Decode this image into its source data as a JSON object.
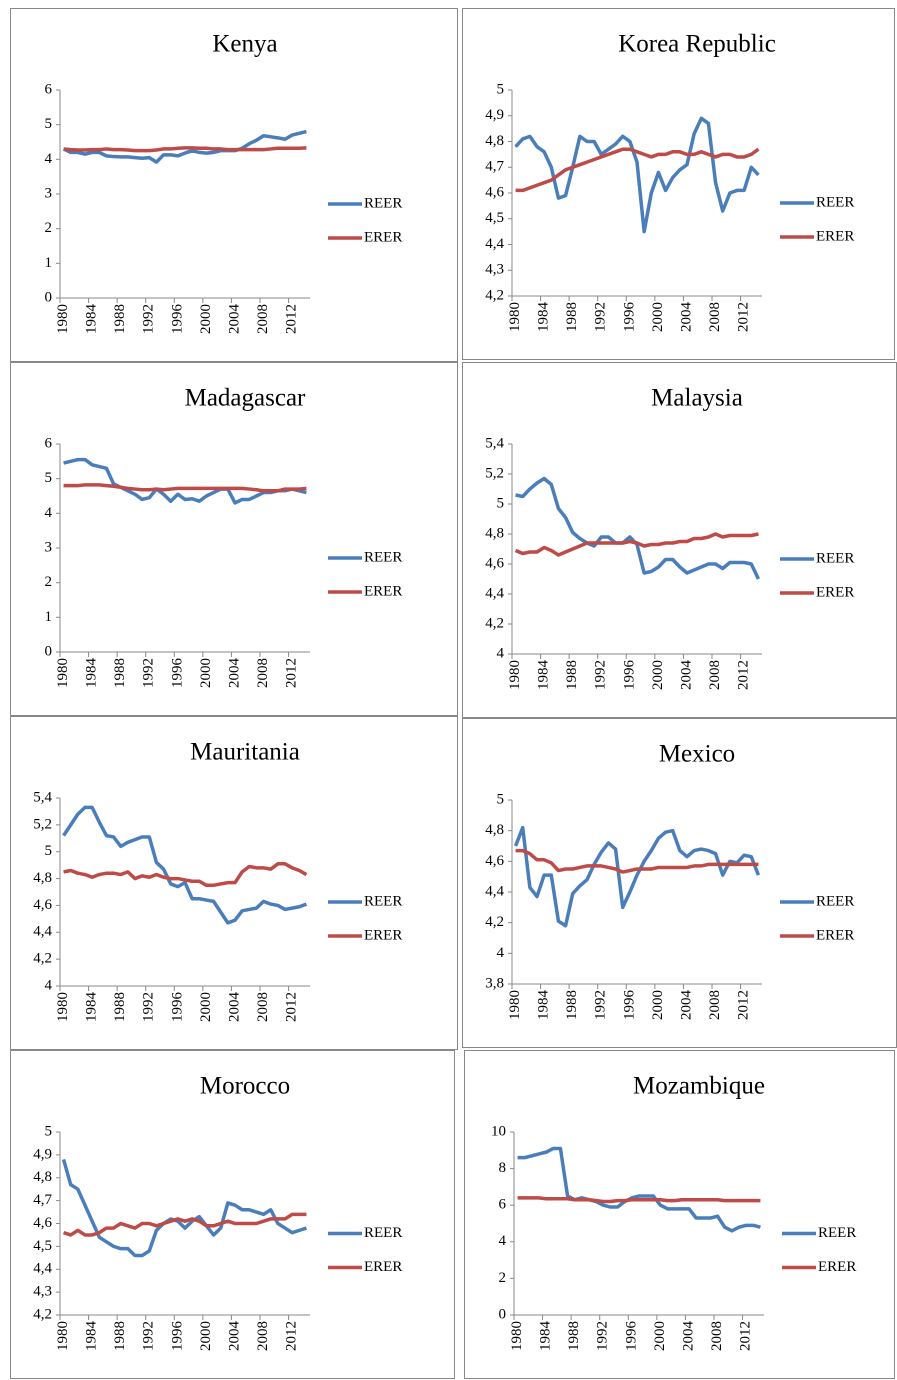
{
  "chart_data": [
    {
      "type": "line",
      "title": "Kenya",
      "categories": [
        "1980",
        null,
        null,
        null,
        "1984",
        null,
        null,
        null,
        "1988",
        null,
        null,
        null,
        "1992",
        null,
        null,
        null,
        "1996",
        null,
        null,
        null,
        "2000",
        null,
        null,
        null,
        "2004",
        null,
        null,
        null,
        "2008",
        null,
        null,
        null,
        "2012",
        null,
        null
      ],
      "ylim": [
        0,
        6
      ],
      "yticks": [
        0,
        1,
        2,
        3,
        4,
        5,
        6
      ],
      "series": [
        {
          "name": "REER",
          "color": "#4a7ebb",
          "values": [
            4.3,
            4.2,
            4.2,
            4.15,
            4.2,
            4.2,
            4.1,
            4.08,
            4.07,
            4.07,
            4.05,
            4.03,
            4.05,
            3.92,
            4.13,
            4.13,
            4.1,
            4.18,
            4.25,
            4.2,
            4.18,
            4.2,
            4.25,
            4.25,
            4.25,
            4.32,
            4.45,
            4.55,
            4.68,
            4.65,
            4.62,
            4.58,
            4.7,
            4.75,
            4.8
          ]
        },
        {
          "name": "ERER",
          "color": "#be4b48",
          "values": [
            4.3,
            4.28,
            4.27,
            4.27,
            4.28,
            4.28,
            4.3,
            4.28,
            4.28,
            4.27,
            4.25,
            4.25,
            4.25,
            4.27,
            4.3,
            4.3,
            4.32,
            4.33,
            4.33,
            4.32,
            4.32,
            4.3,
            4.3,
            4.28,
            4.28,
            4.28,
            4.28,
            4.28,
            4.28,
            4.3,
            4.32,
            4.32,
            4.32,
            4.32,
            4.33
          ]
        }
      ]
    },
    {
      "type": "line",
      "title": "Korea Republic",
      "categories": [
        "1980",
        null,
        null,
        null,
        "1984",
        null,
        null,
        null,
        "1988",
        null,
        null,
        null,
        "1992",
        null,
        null,
        null,
        "1996",
        null,
        null,
        null,
        "2000",
        null,
        null,
        null,
        "2004",
        null,
        null,
        null,
        "2008",
        null,
        null,
        null,
        "2012",
        null,
        null
      ],
      "ylim": [
        4.2,
        5
      ],
      "yticks": [
        {
          "value": 4.2,
          "label": "4,2"
        },
        {
          "value": 4.3,
          "label": "4,3"
        },
        {
          "value": 4.4,
          "label": "4,4"
        },
        {
          "value": 4.5,
          "label": "4,5"
        },
        {
          "value": 4.6,
          "label": "4,6"
        },
        {
          "value": 4.7,
          "label": "4,7"
        },
        {
          "value": 4.8,
          "label": "4,8"
        },
        {
          "value": 4.9,
          "label": "4,9"
        },
        5
      ],
      "series": [
        {
          "name": "REER",
          "color": "#4a7ebb",
          "values": [
            4.78,
            4.81,
            4.82,
            4.78,
            4.76,
            4.7,
            4.58,
            4.59,
            4.7,
            4.82,
            4.8,
            4.8,
            4.75,
            4.77,
            4.79,
            4.82,
            4.8,
            4.72,
            4.45,
            4.6,
            4.68,
            4.61,
            4.66,
            4.69,
            4.71,
            4.83,
            4.89,
            4.87,
            4.64,
            4.53,
            4.6,
            4.61,
            4.61,
            4.7,
            4.67
          ]
        },
        {
          "name": "ERER",
          "color": "#be4b48",
          "values": [
            4.61,
            4.61,
            4.62,
            4.63,
            4.64,
            4.65,
            4.67,
            4.69,
            4.7,
            4.71,
            4.72,
            4.73,
            4.74,
            4.75,
            4.76,
            4.77,
            4.77,
            4.76,
            4.75,
            4.74,
            4.75,
            4.75,
            4.76,
            4.76,
            4.75,
            4.75,
            4.76,
            4.75,
            4.74,
            4.75,
            4.75,
            4.74,
            4.74,
            4.75,
            4.77
          ]
        }
      ]
    },
    {
      "type": "line",
      "title": "Madagascar",
      "categories": [
        "1980",
        null,
        null,
        null,
        "1984",
        null,
        null,
        null,
        "1988",
        null,
        null,
        null,
        "1992",
        null,
        null,
        null,
        "1996",
        null,
        null,
        null,
        "2000",
        null,
        null,
        null,
        "2004",
        null,
        null,
        null,
        "2008",
        null,
        null,
        null,
        "2012",
        null,
        null
      ],
      "ylim": [
        0,
        6
      ],
      "yticks": [
        0,
        1,
        2,
        3,
        4,
        5,
        6
      ],
      "series": [
        {
          "name": "REER",
          "color": "#4a7ebb",
          "values": [
            5.45,
            5.5,
            5.55,
            5.55,
            5.4,
            5.35,
            5.3,
            4.85,
            4.75,
            4.65,
            4.55,
            4.4,
            4.45,
            4.7,
            4.55,
            4.35,
            4.55,
            4.4,
            4.42,
            4.35,
            4.5,
            4.6,
            4.7,
            4.7,
            4.3,
            4.4,
            4.4,
            4.5,
            4.6,
            4.6,
            4.65,
            4.65,
            4.7,
            4.65,
            4.6
          ]
        },
        {
          "name": "ERER",
          "color": "#be4b48",
          "values": [
            4.8,
            4.8,
            4.8,
            4.82,
            4.82,
            4.82,
            4.8,
            4.78,
            4.75,
            4.72,
            4.7,
            4.68,
            4.68,
            4.7,
            4.68,
            4.7,
            4.72,
            4.72,
            4.72,
            4.72,
            4.72,
            4.72,
            4.72,
            4.72,
            4.72,
            4.72,
            4.7,
            4.68,
            4.65,
            4.65,
            4.65,
            4.7,
            4.7,
            4.7,
            4.72
          ]
        }
      ]
    },
    {
      "type": "line",
      "title": "Malaysia",
      "categories": [
        "1980",
        null,
        null,
        null,
        "1984",
        null,
        null,
        null,
        "1988",
        null,
        null,
        null,
        "1992",
        null,
        null,
        null,
        "1996",
        null,
        null,
        null,
        "2000",
        null,
        null,
        null,
        "2004",
        null,
        null,
        null,
        "2008",
        null,
        null,
        null,
        "2012",
        null,
        null
      ],
      "ylim": [
        4,
        5.4
      ],
      "yticks": [
        4,
        {
          "value": 4.2,
          "label": "4,2"
        },
        {
          "value": 4.4,
          "label": "4,4"
        },
        {
          "value": 4.6,
          "label": "4,6"
        },
        {
          "value": 4.8,
          "label": "4,8"
        },
        5,
        {
          "value": 5.2,
          "label": "5,2"
        },
        {
          "value": 5.4,
          "label": "5,4"
        }
      ],
      "series": [
        {
          "name": "REER",
          "color": "#4a7ebb",
          "values": [
            5.06,
            5.05,
            5.1,
            5.14,
            5.17,
            5.13,
            4.97,
            4.91,
            4.81,
            4.77,
            4.74,
            4.72,
            4.78,
            4.78,
            4.74,
            4.74,
            4.78,
            4.73,
            4.54,
            4.55,
            4.58,
            4.63,
            4.63,
            4.58,
            4.54,
            4.56,
            4.58,
            4.6,
            4.6,
            4.57,
            4.61,
            4.61,
            4.61,
            4.6,
            4.5
          ]
        },
        {
          "name": "ERER",
          "color": "#be4b48",
          "values": [
            4.69,
            4.67,
            4.68,
            4.68,
            4.71,
            4.69,
            4.66,
            4.68,
            4.7,
            4.72,
            4.74,
            4.74,
            4.74,
            4.74,
            4.74,
            4.74,
            4.75,
            4.74,
            4.72,
            4.73,
            4.73,
            4.74,
            4.74,
            4.75,
            4.75,
            4.77,
            4.77,
            4.78,
            4.8,
            4.78,
            4.79,
            4.79,
            4.79,
            4.79,
            4.8
          ]
        }
      ]
    },
    {
      "type": "line",
      "title": "Mauritania",
      "categories": [
        "1980",
        null,
        null,
        null,
        "1984",
        null,
        null,
        null,
        "1988",
        null,
        null,
        null,
        "1992",
        null,
        null,
        null,
        "1996",
        null,
        null,
        null,
        "2000",
        null,
        null,
        null,
        "2004",
        null,
        null,
        null,
        "2008",
        null,
        null,
        null,
        "2012",
        null,
        null
      ],
      "ylim": [
        4,
        5.4
      ],
      "yticks": [
        4,
        {
          "value": 4.2,
          "label": "4,2"
        },
        {
          "value": 4.4,
          "label": "4,4"
        },
        {
          "value": 4.6,
          "label": "4,6"
        },
        {
          "value": 4.8,
          "label": "4,8"
        },
        5,
        {
          "value": 5.2,
          "label": "5,2"
        },
        {
          "value": 5.4,
          "label": "5,4"
        }
      ],
      "series": [
        {
          "name": "REER",
          "color": "#4a7ebb",
          "values": [
            5.12,
            5.2,
            5.28,
            5.33,
            5.33,
            5.22,
            5.12,
            5.11,
            5.04,
            5.07,
            5.09,
            5.11,
            5.11,
            4.92,
            4.87,
            4.76,
            4.74,
            4.77,
            4.65,
            4.65,
            4.64,
            4.63,
            4.55,
            4.47,
            4.49,
            4.56,
            4.57,
            4.58,
            4.63,
            4.61,
            4.6,
            4.57,
            4.58,
            4.59,
            4.61
          ]
        },
        {
          "name": "ERER",
          "color": "#be4b48",
          "values": [
            4.85,
            4.86,
            4.84,
            4.83,
            4.81,
            4.83,
            4.84,
            4.84,
            4.83,
            4.85,
            4.8,
            4.82,
            4.81,
            4.83,
            4.81,
            4.8,
            4.8,
            4.79,
            4.78,
            4.78,
            4.75,
            4.75,
            4.76,
            4.77,
            4.77,
            4.85,
            4.89,
            4.88,
            4.88,
            4.87,
            4.91,
            4.91,
            4.88,
            4.86,
            4.83
          ]
        }
      ]
    },
    {
      "type": "line",
      "title": "Mexico",
      "categories": [
        "1980",
        null,
        null,
        null,
        "1984",
        null,
        null,
        null,
        "1988",
        null,
        null,
        null,
        "1992",
        null,
        null,
        null,
        "1996",
        null,
        null,
        null,
        "2000",
        null,
        null,
        null,
        "2004",
        null,
        null,
        null,
        "2008",
        null,
        null,
        null,
        "2012",
        null,
        null
      ],
      "ylim": [
        3.8,
        5
      ],
      "yticks": [
        {
          "value": 3.8,
          "label": "3,8"
        },
        4,
        {
          "value": 4.2,
          "label": "4,2"
        },
        {
          "value": 4.4,
          "label": "4,4"
        },
        {
          "value": 4.6,
          "label": "4,6"
        },
        {
          "value": 4.8,
          "label": "4,8"
        },
        5
      ],
      "series": [
        {
          "name": "REER",
          "color": "#4a7ebb",
          "values": [
            4.7,
            4.82,
            4.43,
            4.37,
            4.51,
            4.51,
            4.21,
            4.18,
            4.39,
            4.44,
            4.48,
            4.58,
            4.66,
            4.72,
            4.68,
            4.3,
            4.4,
            4.51,
            4.6,
            4.67,
            4.75,
            4.79,
            4.8,
            4.67,
            4.63,
            4.67,
            4.68,
            4.67,
            4.65,
            4.51,
            4.6,
            4.59,
            4.64,
            4.63,
            4.51
          ]
        },
        {
          "name": "ERER",
          "color": "#be4b48",
          "values": [
            4.67,
            4.67,
            4.65,
            4.61,
            4.61,
            4.59,
            4.54,
            4.55,
            4.55,
            4.56,
            4.57,
            4.57,
            4.57,
            4.56,
            4.55,
            4.53,
            4.54,
            4.55,
            4.55,
            4.55,
            4.56,
            4.56,
            4.56,
            4.56,
            4.56,
            4.57,
            4.57,
            4.58,
            4.58,
            4.58,
            4.58,
            4.58,
            4.58,
            4.58,
            4.58
          ]
        }
      ]
    },
    {
      "type": "line",
      "title": "Morocco",
      "categories": [
        "1980",
        null,
        null,
        null,
        "1984",
        null,
        null,
        null,
        "1988",
        null,
        null,
        null,
        "1992",
        null,
        null,
        null,
        "1996",
        null,
        null,
        null,
        "2000",
        null,
        null,
        null,
        "2004",
        null,
        null,
        null,
        "2008",
        null,
        null,
        null,
        "2012",
        null,
        null
      ],
      "ylim": [
        4.2,
        5
      ],
      "yticks": [
        {
          "value": 4.2,
          "label": "4,2"
        },
        {
          "value": 4.3,
          "label": "4,3"
        },
        {
          "value": 4.4,
          "label": "4,4"
        },
        {
          "value": 4.5,
          "label": "4,5"
        },
        {
          "value": 4.6,
          "label": "4,6"
        },
        {
          "value": 4.7,
          "label": "4,7"
        },
        {
          "value": 4.8,
          "label": "4,8"
        },
        {
          "value": 4.9,
          "label": "4,9"
        },
        5
      ],
      "series": [
        {
          "name": "REER",
          "color": "#4a7ebb",
          "values": [
            4.88,
            4.77,
            4.75,
            4.68,
            4.61,
            4.54,
            4.52,
            4.5,
            4.49,
            4.49,
            4.46,
            4.46,
            4.48,
            4.57,
            4.6,
            4.62,
            4.61,
            4.58,
            4.61,
            4.63,
            4.59,
            4.55,
            4.58,
            4.69,
            4.68,
            4.66,
            4.66,
            4.65,
            4.64,
            4.66,
            4.6,
            4.58,
            4.56,
            4.57,
            4.58
          ]
        },
        {
          "name": "ERER",
          "color": "#be4b48",
          "values": [
            4.56,
            4.55,
            4.57,
            4.55,
            4.55,
            4.56,
            4.58,
            4.58,
            4.6,
            4.59,
            4.58,
            4.6,
            4.6,
            4.59,
            4.6,
            4.61,
            4.62,
            4.61,
            4.62,
            4.61,
            4.59,
            4.59,
            4.6,
            4.61,
            4.6,
            4.6,
            4.6,
            4.6,
            4.61,
            4.62,
            4.62,
            4.62,
            4.64,
            4.64,
            4.64
          ]
        }
      ]
    },
    {
      "type": "line",
      "title": "Mozambique",
      "categories": [
        "1980",
        null,
        null,
        null,
        "1984",
        null,
        null,
        null,
        "1988",
        null,
        null,
        null,
        "1992",
        null,
        null,
        null,
        "1996",
        null,
        null,
        null,
        "2000",
        null,
        null,
        null,
        "2004",
        null,
        null,
        null,
        "2008",
        null,
        null,
        null,
        "2012",
        null,
        null
      ],
      "ylim": [
        0,
        10
      ],
      "yticks": [
        0,
        2,
        4,
        6,
        8,
        10
      ],
      "series": [
        {
          "name": "REER",
          "color": "#4a7ebb",
          "values": [
            8.6,
            8.6,
            8.7,
            8.8,
            8.9,
            9.1,
            9.1,
            6.5,
            6.3,
            6.4,
            6.3,
            6.2,
            6.0,
            5.9,
            5.9,
            6.2,
            6.4,
            6.5,
            6.5,
            6.5,
            6.0,
            5.8,
            5.8,
            5.8,
            5.8,
            5.3,
            5.3,
            5.3,
            5.4,
            4.8,
            4.6,
            4.8,
            4.9,
            4.9,
            4.8
          ]
        },
        {
          "name": "ERER",
          "color": "#be4b48",
          "values": [
            6.4,
            6.4,
            6.4,
            6.4,
            6.35,
            6.35,
            6.35,
            6.35,
            6.3,
            6.3,
            6.3,
            6.25,
            6.2,
            6.2,
            6.25,
            6.25,
            6.3,
            6.3,
            6.3,
            6.3,
            6.3,
            6.25,
            6.25,
            6.3,
            6.3,
            6.3,
            6.3,
            6.3,
            6.3,
            6.25,
            6.25,
            6.25,
            6.25,
            6.25,
            6.25
          ]
        }
      ]
    }
  ]
}
